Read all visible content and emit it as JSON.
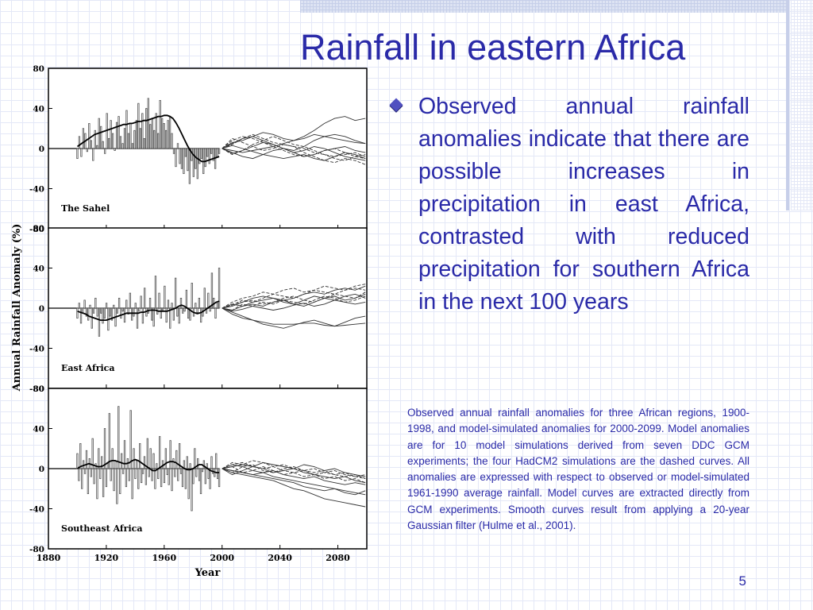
{
  "title": "Rainfall in eastern Africa",
  "bullet": "Observed annual rainfall anomalies indicate that there are possible increases in precipitation in east Africa, contrasted with reduced precipitation for southern Africa in the next 100 years",
  "caption": "Observed annual rainfall anomalies for three African regions, 1900-1998, and model-simulated anomalies for 2000-2099. Model anomalies are for 10 model simulations derived from seven DDC GCM experiments; the four HadCM2 simulations are the dashed curves. All anomalies are expressed with respect to observed or model-simulated 1961-1990 average rainfall. Model curves are extracted directly from GCM experiments. Smooth curves result from applying a 20-year Gaussian filter (Hulme et al., 2001).",
  "page_number": "5",
  "colors": {
    "text": "#2a2aa8",
    "grid": "#e4e8f7"
  },
  "icons": {
    "bullet": "diamond-bullet-icon"
  },
  "chart_data": {
    "type": "bar",
    "ylabel": "Annual Rainfall Anomaly (%)",
    "xlabel": "Year",
    "xlim": [
      1880,
      2100
    ],
    "ylim": [
      -80,
      80
    ],
    "xticks": [
      1880,
      1920,
      1960,
      2000,
      2040,
      2080
    ],
    "yticks": [
      -80,
      -40,
      0,
      40,
      80
    ],
    "observed_years": [
      1900,
      1998
    ],
    "model_years": [
      2000,
      2099
    ],
    "panels": [
      {
        "name": "The Sahel",
        "observed": [
          -10,
          12,
          -8,
          20,
          15,
          -3,
          25,
          8,
          -12,
          18,
          3,
          30,
          22,
          7,
          -5,
          35,
          10,
          28,
          15,
          -2,
          26,
          32,
          12,
          5,
          20,
          38,
          15,
          25,
          5,
          18,
          28,
          45,
          20,
          35,
          10,
          40,
          50,
          24,
          30,
          18,
          35,
          15,
          48,
          30,
          25,
          18,
          28,
          32,
          15,
          -5,
          -18,
          5,
          -15,
          -20,
          -25,
          -8,
          -22,
          -35,
          -12,
          -28,
          -20,
          -30,
          -15,
          -10,
          -25,
          -18,
          -8,
          -15,
          -5,
          -12,
          -20,
          -8,
          -5
        ],
        "smoothed": [
          2,
          4,
          6,
          8,
          10,
          12,
          14,
          15,
          16,
          17,
          18,
          19,
          20,
          21,
          22,
          23,
          24,
          24,
          25,
          25,
          26,
          27,
          27,
          28,
          28,
          29,
          30,
          31,
          32,
          32,
          33,
          33,
          32,
          30,
          26,
          21,
          15,
          9,
          3,
          -2,
          -6,
          -9,
          -11,
          -13,
          -13,
          -12,
          -11,
          -10,
          -9,
          -8
        ],
        "models": [
          {
            "dashed": false,
            "values": [
              0,
              5,
              10,
              12,
              8,
              4,
              0,
              -2,
              2,
              8,
              12,
              14,
              12,
              8,
              5
            ]
          },
          {
            "dashed": false,
            "values": [
              0,
              -2,
              -4,
              -2,
              0,
              2,
              5,
              8,
              12,
              18,
              25,
              30,
              32,
              28,
              30
            ]
          },
          {
            "dashed": false,
            "values": [
              0,
              6,
              8,
              12,
              16,
              14,
              10,
              8,
              10,
              14,
              12,
              10,
              8,
              6,
              5
            ]
          },
          {
            "dashed": false,
            "values": [
              0,
              -4,
              -8,
              -10,
              -6,
              -2,
              0,
              -4,
              -8,
              -6,
              -2,
              0,
              2,
              -2,
              -4
            ]
          },
          {
            "dashed": false,
            "values": [
              0,
              3,
              0,
              -3,
              -6,
              -8,
              -10,
              -8,
              -6,
              -10,
              -12,
              -8,
              -4,
              -6,
              -10
            ]
          },
          {
            "dashed": false,
            "values": [
              0,
              -5,
              -2,
              2,
              6,
              4,
              0,
              -4,
              -2,
              2,
              0,
              -4,
              -8,
              -10,
              -12
            ]
          },
          {
            "dashed": true,
            "values": [
              0,
              8,
              12,
              10,
              6,
              2,
              -2,
              -6,
              -8,
              -6,
              -2,
              0,
              -4,
              -8,
              -10
            ]
          },
          {
            "dashed": true,
            "values": [
              0,
              4,
              10,
              14,
              10,
              6,
              4,
              2,
              0,
              -4,
              -6,
              -8,
              -6,
              -4,
              -8
            ]
          },
          {
            "dashed": true,
            "values": [
              0,
              -6,
              -2,
              4,
              8,
              12,
              8,
              4,
              2,
              -2,
              -6,
              -10,
              -12,
              -8,
              -6
            ]
          },
          {
            "dashed": true,
            "values": [
              0,
              10,
              6,
              2,
              -2,
              0,
              4,
              2,
              -4,
              -8,
              -12,
              -14,
              -10,
              -12,
              -16
            ]
          }
        ]
      },
      {
        "name": "East Africa",
        "observed": [
          -10,
          5,
          -15,
          -5,
          8,
          -8,
          -12,
          3,
          -20,
          -5,
          10,
          -8,
          -28,
          -5,
          -15,
          -10,
          5,
          -22,
          -8,
          -12,
          3,
          -18,
          -5,
          10,
          -10,
          -3,
          -14,
          8,
          -6,
          15,
          -12,
          -8,
          5,
          -20,
          -3,
          12,
          -15,
          20,
          -8,
          -5,
          10,
          -12,
          -18,
          32,
          -6,
          15,
          -10,
          -3,
          22,
          -14,
          8,
          -20,
          5,
          -12,
          30,
          -8,
          -15,
          10,
          -5,
          -3,
          18,
          -10,
          -12,
          25,
          -8,
          5,
          -6,
          10,
          -14,
          -8,
          20,
          -5,
          15,
          -3,
          35,
          10,
          -10,
          5,
          40
        ],
        "smoothed": [
          -3,
          -4,
          -5,
          -6,
          -8,
          -9,
          -10,
          -11,
          -12,
          -12,
          -12,
          -11,
          -10,
          -9,
          -8,
          -7,
          -6,
          -5,
          -5,
          -5,
          -5,
          -5,
          -4,
          -4,
          -3,
          -2,
          -2,
          -2,
          -3,
          -3,
          -3,
          -3,
          -2,
          -1,
          0,
          2,
          3,
          2,
          0,
          -2,
          -4,
          -5,
          -5,
          -4,
          -2,
          0,
          2,
          4,
          6,
          7
        ],
        "models": [
          {
            "dashed": false,
            "values": [
              0,
              -6,
              -10,
              -12,
              -14,
              -16,
              -16,
              -16,
              -15,
              -15,
              -17,
              -18,
              -17,
              -16,
              -15
            ]
          },
          {
            "dashed": false,
            "values": [
              0,
              -4,
              -8,
              -12,
              -16,
              -18,
              -20,
              -17,
              -14,
              -12,
              -15,
              -18,
              -14,
              -10,
              -8
            ]
          },
          {
            "dashed": false,
            "values": [
              0,
              2,
              6,
              10,
              12,
              10,
              8,
              10,
              14,
              16,
              14,
              18,
              20,
              18,
              22
            ]
          },
          {
            "dashed": false,
            "values": [
              0,
              4,
              2,
              6,
              8,
              10,
              6,
              4,
              8,
              12,
              10,
              8,
              12,
              14,
              10
            ]
          },
          {
            "dashed": false,
            "values": [
              0,
              -2,
              2,
              4,
              2,
              6,
              8,
              4,
              2,
              6,
              10,
              12,
              8,
              10,
              14
            ]
          },
          {
            "dashed": false,
            "values": [
              0,
              -3,
              -1,
              2,
              0,
              -2,
              0,
              3,
              5,
              2,
              4,
              8,
              6,
              4,
              6
            ]
          },
          {
            "dashed": true,
            "values": [
              0,
              6,
              10,
              12,
              16,
              14,
              18,
              20,
              16,
              18,
              22,
              20,
              18,
              22,
              24
            ]
          },
          {
            "dashed": true,
            "values": [
              0,
              3,
              8,
              6,
              10,
              14,
              12,
              10,
              14,
              18,
              16,
              14,
              18,
              20,
              18
            ]
          },
          {
            "dashed": true,
            "values": [
              0,
              4,
              6,
              8,
              4,
              6,
              10,
              12,
              8,
              6,
              10,
              14,
              12,
              10,
              16
            ]
          },
          {
            "dashed": true,
            "values": [
              0,
              -2,
              4,
              2,
              6,
              4,
              8,
              6,
              4,
              8,
              12,
              10,
              6,
              8,
              12
            ]
          }
        ]
      },
      {
        "name": "Southeast Africa",
        "observed": [
          15,
          -12,
          25,
          -20,
          8,
          -5,
          18,
          -25,
          10,
          -8,
          30,
          -15,
          5,
          -30,
          20,
          -10,
          12,
          -28,
          40,
          -18,
          5,
          55,
          -12,
          20,
          -22,
          8,
          -35,
          62,
          -25,
          15,
          -5,
          28,
          -18,
          10,
          -12,
          58,
          -30,
          20,
          -10,
          8,
          -20,
          25,
          -14,
          -5,
          12,
          -16,
          30,
          -8,
          20,
          -12,
          15,
          -20,
          5,
          -10,
          32,
          -18,
          8,
          -14,
          20,
          -6,
          -16,
          28,
          -22,
          10,
          -8,
          18,
          -12,
          25,
          -5,
          -18,
          8,
          -20,
          12,
          -30,
          5,
          -42,
          -15,
          20,
          -8,
          10,
          -12,
          -25,
          -3,
          8,
          -15,
          5,
          -10,
          -20,
          12,
          -5,
          -8,
          15,
          -10,
          -18
        ],
        "smoothed": [
          0,
          2,
          3,
          4,
          5,
          4,
          3,
          2,
          2,
          3,
          5,
          7,
          8,
          8,
          7,
          6,
          5,
          5,
          6,
          8,
          9,
          8,
          6,
          4,
          2,
          0,
          -2,
          -2,
          0,
          2,
          4,
          6,
          7,
          7,
          6,
          4,
          2,
          0,
          -1,
          -1,
          0,
          2,
          4,
          4,
          2,
          0,
          -2,
          -3,
          -4,
          -4
        ],
        "models": [
          {
            "dashed": false,
            "values": [
              0,
              -4,
              -6,
              -8,
              -10,
              -12,
              -16,
              -20,
              -22,
              -26,
              -30,
              -32,
              -34,
              -36,
              -38
            ]
          },
          {
            "dashed": false,
            "values": [
              0,
              -2,
              -4,
              -6,
              -8,
              -10,
              -12,
              -14,
              -18,
              -20,
              -22,
              -20,
              -24,
              -26,
              -22
            ]
          },
          {
            "dashed": false,
            "values": [
              0,
              4,
              2,
              -2,
              -4,
              -8,
              -10,
              -12,
              -14,
              -16,
              -18,
              -20,
              -22,
              -24,
              -26
            ]
          },
          {
            "dashed": false,
            "values": [
              0,
              -6,
              -2,
              2,
              0,
              -4,
              -2,
              0,
              4,
              2,
              -2,
              0,
              -4,
              -6,
              -8
            ]
          },
          {
            "dashed": false,
            "values": [
              0,
              2,
              4,
              2,
              6,
              4,
              2,
              0,
              -4,
              -6,
              -8,
              -10,
              -8,
              -12,
              -14
            ]
          },
          {
            "dashed": false,
            "values": [
              0,
              -2,
              -4,
              -6,
              -4,
              -2,
              -6,
              -8,
              -10,
              -8,
              -12,
              -14,
              -16,
              -14,
              -16
            ]
          },
          {
            "dashed": true,
            "values": [
              0,
              6,
              4,
              8,
              6,
              2,
              4,
              0,
              -2,
              -4,
              -2,
              -6,
              -8,
              -6,
              -10
            ]
          },
          {
            "dashed": true,
            "values": [
              0,
              -4,
              2,
              4,
              -2,
              -4,
              0,
              2,
              -2,
              -6,
              -4,
              -2,
              -6,
              -8,
              -6
            ]
          },
          {
            "dashed": true,
            "values": [
              0,
              2,
              -4,
              -2,
              2,
              -2,
              -6,
              -4,
              -8,
              -6,
              -10,
              -8,
              -12,
              -10,
              -14
            ]
          },
          {
            "dashed": true,
            "values": [
              0,
              4,
              6,
              2,
              0,
              2,
              -2,
              -4,
              -2,
              0,
              -4,
              -6,
              -4,
              -8,
              -10
            ]
          }
        ]
      }
    ]
  }
}
